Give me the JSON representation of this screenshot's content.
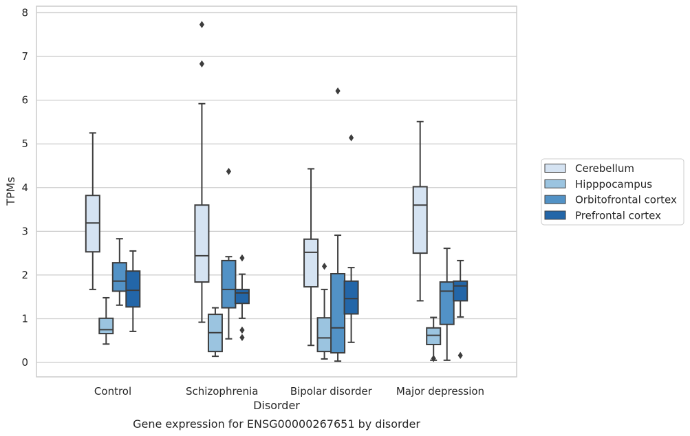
{
  "chart_data": {
    "type": "boxplot",
    "caption": "Gene expression for ENSG00000267651 by disorder",
    "xlabel": "Disorder",
    "ylabel": "TPMs",
    "ylim": [
      -0.33,
      8.15
    ],
    "yticks": [
      0,
      1,
      2,
      3,
      4,
      5,
      6,
      7,
      8
    ],
    "grid": true,
    "legend_position": "right",
    "categories": [
      "Control",
      "Schizophrenia",
      "Bipolar disorder",
      "Major depression"
    ],
    "series": [
      {
        "name": "Cerebellum",
        "color": "#d5e3f2",
        "boxes": [
          {
            "whislo": 1.67,
            "q1": 2.53,
            "med": 3.19,
            "q3": 3.82,
            "whishi": 5.25,
            "fliers": []
          },
          {
            "whislo": 0.92,
            "q1": 1.84,
            "med": 2.44,
            "q3": 3.6,
            "whishi": 5.92,
            "fliers": [
              6.83,
              7.73
            ]
          },
          {
            "whislo": 0.39,
            "q1": 1.73,
            "med": 2.52,
            "q3": 2.82,
            "whishi": 4.43,
            "fliers": []
          },
          {
            "whislo": 1.41,
            "q1": 2.5,
            "med": 3.6,
            "q3": 4.02,
            "whishi": 5.51,
            "fliers": []
          }
        ]
      },
      {
        "name": "Hipppocampus",
        "color": "#9bc4e0",
        "boxes": [
          {
            "whislo": 0.42,
            "q1": 0.66,
            "med": 0.75,
            "q3": 1.01,
            "whishi": 1.48,
            "fliers": []
          },
          {
            "whislo": 0.14,
            "q1": 0.25,
            "med": 0.68,
            "q3": 1.1,
            "whishi": 1.25,
            "fliers": []
          },
          {
            "whislo": 0.08,
            "q1": 0.25,
            "med": 0.56,
            "q3": 1.02,
            "whishi": 1.67,
            "fliers": [
              2.2
            ]
          },
          {
            "whislo": 0.05,
            "q1": 0.41,
            "med": 0.62,
            "q3": 0.79,
            "whishi": 1.03,
            "fliers": [
              0.09
            ]
          }
        ]
      },
      {
        "name": "Orbitofrontal cortex",
        "color": "#5292c6",
        "boxes": [
          {
            "whislo": 1.31,
            "q1": 1.63,
            "med": 1.86,
            "q3": 2.28,
            "whishi": 2.83,
            "fliers": []
          },
          {
            "whislo": 0.54,
            "q1": 1.25,
            "med": 1.67,
            "q3": 2.33,
            "whishi": 2.42,
            "fliers": [
              4.37
            ]
          },
          {
            "whislo": 0.03,
            "q1": 0.22,
            "med": 0.79,
            "q3": 2.03,
            "whishi": 2.91,
            "fliers": [
              6.21
            ]
          },
          {
            "whislo": 0.05,
            "q1": 0.87,
            "med": 1.63,
            "q3": 1.84,
            "whishi": 2.61,
            "fliers": []
          }
        ]
      },
      {
        "name": "Prefrontal cortex",
        "color": "#2366a8",
        "boxes": [
          {
            "whislo": 0.71,
            "q1": 1.27,
            "med": 1.65,
            "q3": 2.09,
            "whishi": 2.55,
            "fliers": []
          },
          {
            "whislo": 1.01,
            "q1": 1.35,
            "med": 1.59,
            "q3": 1.67,
            "whishi": 2.02,
            "fliers": [
              2.39,
              0.74,
              0.57
            ]
          },
          {
            "whislo": 0.46,
            "q1": 1.11,
            "med": 1.46,
            "q3": 1.86,
            "whishi": 2.17,
            "fliers": [
              5.14
            ]
          },
          {
            "whislo": 1.04,
            "q1": 1.41,
            "med": 1.75,
            "q3": 1.86,
            "whishi": 2.33,
            "fliers": [
              0.16
            ]
          }
        ]
      }
    ]
  }
}
